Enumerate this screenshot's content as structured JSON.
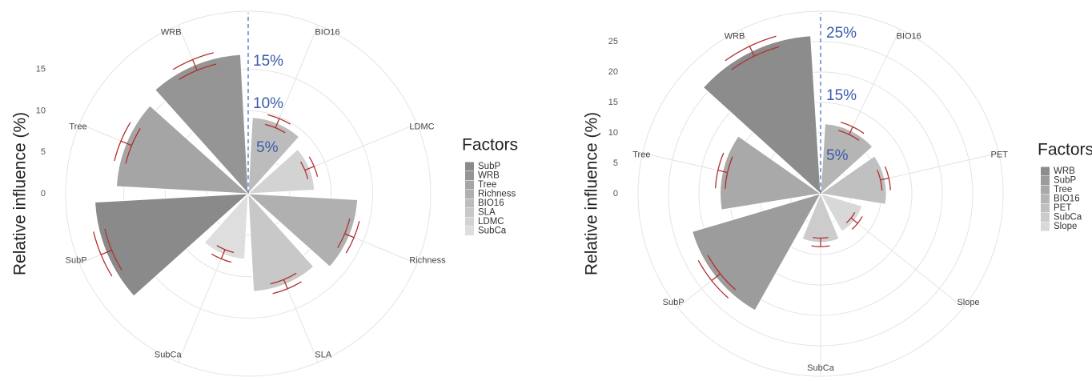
{
  "chart_data": [
    {
      "type": "rose",
      "y_label": "Relative influence (%)",
      "categories": [
        "BIO16",
        "LDMC",
        "Richness",
        "SLA",
        "SubCa",
        "SubP",
        "Tree",
        "WRB"
      ],
      "values": [
        9.2,
        8.0,
        13.2,
        11.8,
        7.9,
        18.5,
        15.9,
        16.8
      ],
      "errors": [
        0.6,
        0.6,
        0.6,
        0.6,
        0.6,
        0.7,
        0.7,
        0.7
      ],
      "colors": [
        "#bcbcbc",
        "#d3d3d3",
        "#b0b0b0",
        "#c8c8c8",
        "#dedede",
        "#8a8a8a",
        "#a5a5a5",
        "#959595"
      ],
      "error_color": "#b03030",
      "ylim": [
        0,
        22
      ],
      "yticks": [
        0,
        5,
        10,
        15
      ],
      "legend_title": "Factors",
      "legend": [
        "SubP",
        "WRB",
        "Tree",
        "Richness",
        "BIO16",
        "SLA",
        "LDMC",
        "SubCa"
      ],
      "annotations": [
        "5%",
        "10%",
        "15%"
      ]
    },
    {
      "type": "rose",
      "y_label": "Relative influence (%)",
      "categories": [
        "BIO16",
        "PET",
        "Slope",
        "SubCa",
        "SubP",
        "Tree",
        "WRB"
      ],
      "values": [
        11.5,
        10.8,
        7.1,
        8.0,
        22.0,
        16.5,
        26.0
      ],
      "errors": [
        0.7,
        0.7,
        0.7,
        0.7,
        0.9,
        0.8,
        0.9
      ],
      "colors": [
        "#b5b5b5",
        "#c0c0c0",
        "#d8d8d8",
        "#cccccc",
        "#9c9c9c",
        "#a9a9a9",
        "#8c8c8c"
      ],
      "error_color": "#b03030",
      "ylim": [
        0,
        30
      ],
      "yticks": [
        0,
        5,
        10,
        15,
        20,
        25
      ],
      "legend_title": "Factors",
      "legend": [
        "WRB",
        "SubP",
        "Tree",
        "BIO16",
        "PET",
        "SubCa",
        "Slope"
      ],
      "annotations": [
        "5%",
        "15%",
        "25%"
      ]
    }
  ]
}
